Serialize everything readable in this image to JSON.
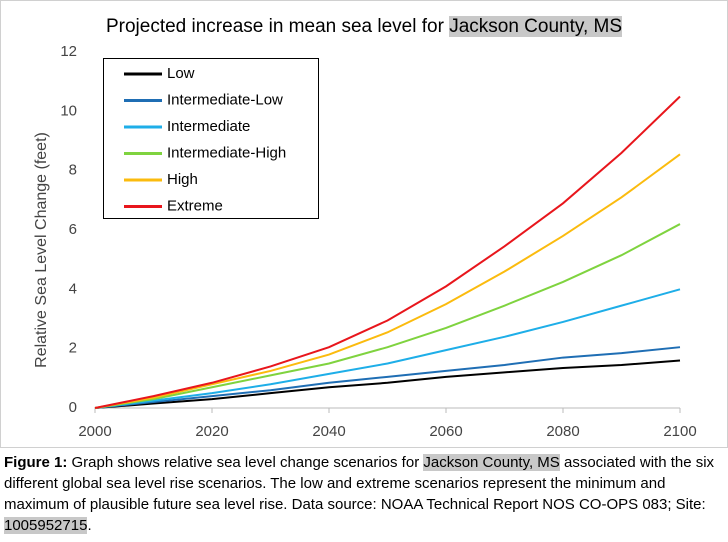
{
  "chart_data": {
    "type": "line",
    "title": "Projected increase in mean sea level for ",
    "title_highlight": "Jackson County, MS",
    "y_label": "Relative Sea Level Change (feet)",
    "x": [
      2000,
      2010,
      2020,
      2030,
      2040,
      2050,
      2060,
      2070,
      2080,
      2090,
      2100
    ],
    "series": [
      {
        "name": "Low",
        "color": "#000000",
        "values": [
          0,
          0.15,
          0.3,
          0.5,
          0.7,
          0.85,
          1.05,
          1.2,
          1.35,
          1.45,
          1.6
        ]
      },
      {
        "name": "Intermediate-Low",
        "color": "#1f6eb4",
        "values": [
          0,
          0.2,
          0.4,
          0.6,
          0.85,
          1.05,
          1.25,
          1.45,
          1.7,
          1.85,
          2.05
        ]
      },
      {
        "name": "Intermediate",
        "color": "#1eaee8",
        "values": [
          0,
          0.25,
          0.5,
          0.8,
          1.15,
          1.5,
          1.95,
          2.4,
          2.9,
          3.45,
          4.0
        ]
      },
      {
        "name": "Intermediate-High",
        "color": "#7fd33f",
        "values": [
          0,
          0.3,
          0.7,
          1.1,
          1.5,
          2.05,
          2.7,
          3.45,
          4.25,
          5.15,
          6.2
        ]
      },
      {
        "name": "High",
        "color": "#fbbb0e",
        "values": [
          0,
          0.35,
          0.8,
          1.25,
          1.8,
          2.55,
          3.5,
          4.6,
          5.8,
          7.1,
          8.55
        ]
      },
      {
        "name": "Extreme",
        "color": "#e8161c",
        "values": [
          0,
          0.4,
          0.85,
          1.4,
          2.05,
          2.95,
          4.1,
          5.45,
          6.9,
          8.6,
          10.5
        ]
      }
    ],
    "xlim": [
      2000,
      2100
    ],
    "xticks": [
      2000,
      2020,
      2040,
      2060,
      2080,
      2100
    ],
    "ylim": [
      0,
      12
    ],
    "yticks": [
      0,
      2,
      4,
      6,
      8,
      10,
      12
    ],
    "grid": false,
    "legend": "upper left"
  },
  "caption": {
    "label": "Figure 1:",
    "parts": [
      {
        "text": " Graph shows relative sea level change scenarios for ",
        "highlight": false
      },
      {
        "text": "Jackson County, MS",
        "highlight": true
      },
      {
        "text": " associated with the six different global sea level rise scenarios. The low and extreme scenarios represent the minimum and maximum of plausible future sea level rise. Data source: NOAA Technical Report NOS CO-OPS 083; Site: ",
        "highlight": false
      },
      {
        "text": "1005952715",
        "highlight": true
      },
      {
        "text": ".",
        "highlight": false
      }
    ]
  }
}
